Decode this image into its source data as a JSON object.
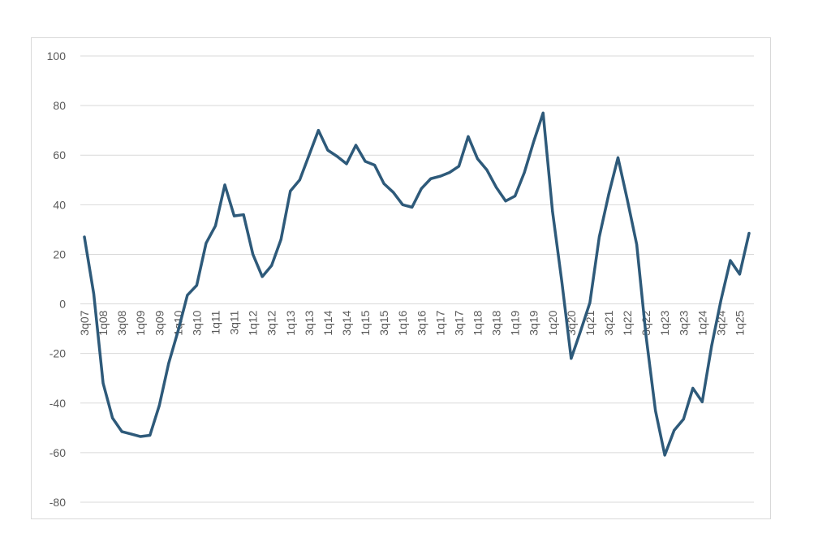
{
  "chart_data": {
    "type": "line",
    "title": "",
    "xlabel": "",
    "ylabel": "",
    "ylim": [
      -80,
      100
    ],
    "yticks": [
      100,
      80,
      60,
      40,
      20,
      0,
      -20,
      -40,
      -60,
      -80
    ],
    "grid": true,
    "legend": "none",
    "line_color": "#2e5a7a",
    "x": [
      "3q07",
      "4q07",
      "1q08",
      "2q08",
      "3q08",
      "4q08",
      "1q09",
      "2q09",
      "3q09",
      "4q09",
      "1q10",
      "2q10",
      "3q10",
      "4q10",
      "1q11",
      "2q11",
      "3q11",
      "4q11",
      "1q12",
      "2q12",
      "3q12",
      "4q12",
      "1q13",
      "2q13",
      "3q13",
      "4q13",
      "1q14",
      "2q14",
      "3q14",
      "4q14",
      "1q15",
      "2q15",
      "3q15",
      "4q15",
      "1q16",
      "2q16",
      "3q16",
      "4q16",
      "1q17",
      "2q17",
      "3q17",
      "4q17",
      "1q18",
      "2q18",
      "3q18",
      "4q18",
      "1q19",
      "2q19",
      "3q19",
      "4q19",
      "1q20",
      "2q20",
      "3q20",
      "4q20",
      "1q21",
      "2q21",
      "3q21",
      "4q21",
      "1q22",
      "2q22",
      "3q22",
      "4q22",
      "1q23",
      "2q23",
      "3q23",
      "4q23",
      "1q24",
      "2q24",
      "3q24",
      "4q24",
      "1q25",
      "2q25"
    ],
    "x_tick_labels": [
      "3q07",
      "1q08",
      "3q08",
      "1q09",
      "3q09",
      "1q10",
      "3q10",
      "1q11",
      "3q11",
      "1q12",
      "3q12",
      "1q13",
      "3q13",
      "1q14",
      "3q14",
      "1q15",
      "3q15",
      "1q16",
      "3q16",
      "1q17",
      "3q17",
      "1q18",
      "3q18",
      "1q19",
      "3q19",
      "1q20",
      "3q20",
      "1q21",
      "3q21",
      "1q22",
      "3q22",
      "1q23",
      "3q23",
      "1q24",
      "3q24",
      "1q25"
    ],
    "series": [
      {
        "values": [
          27,
          4,
          -32,
          -46,
          -51.5,
          -52.5,
          -53.5,
          -53,
          -41,
          -24,
          -11,
          3.5,
          7.5,
          24.5,
          31.5,
          48,
          35.5,
          36,
          20,
          11,
          15.5,
          26,
          45.5,
          50,
          60,
          70,
          62,
          59.5,
          56.5,
          64,
          57.5,
          56,
          48.5,
          45,
          40,
          39,
          46.5,
          50.5,
          51.5,
          53,
          55.5,
          67.5,
          58.5,
          54,
          47,
          41.5,
          43.5,
          53,
          65.5,
          77,
          37.5,
          9,
          -22,
          -11,
          0.5,
          27,
          44,
          59,
          42,
          24,
          -13,
          -43,
          -61,
          -51,
          -46.5,
          -34,
          -39.5,
          -17,
          1.5,
          17.5,
          12,
          28.5
        ]
      }
    ]
  }
}
